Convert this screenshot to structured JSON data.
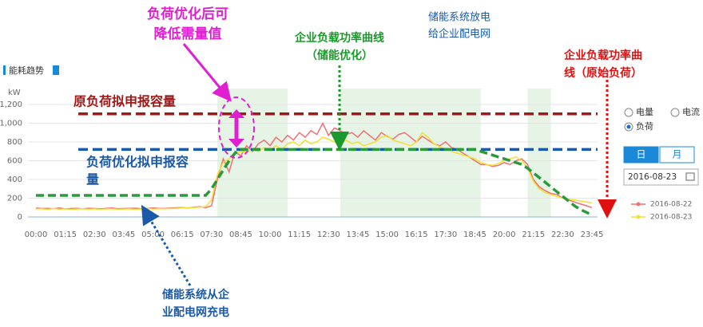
{
  "header": {
    "title": "能耗趋势"
  },
  "chart_data": {
    "type": "line",
    "y_axis_label": "kW",
    "categories": [
      "00:00",
      null,
      null,
      null,
      null,
      "01:15",
      null,
      null,
      null,
      null,
      "02:30",
      null,
      null,
      null,
      null,
      "03:45",
      null,
      null,
      null,
      null,
      "05:00",
      null,
      null,
      null,
      null,
      "06:15",
      null,
      null,
      null,
      null,
      "07:30",
      null,
      null,
      null,
      null,
      "08:45",
      null,
      null,
      null,
      null,
      "10:00",
      null,
      null,
      null,
      null,
      "11:15",
      null,
      null,
      null,
      null,
      "12:30",
      null,
      null,
      null,
      null,
      "13:45",
      null,
      null,
      null,
      null,
      "15:00",
      null,
      null,
      null,
      null,
      "16:15",
      null,
      null,
      null,
      null,
      "17:30",
      null,
      null,
      null,
      null,
      "18:45",
      null,
      null,
      null,
      null,
      "20:00",
      null,
      null,
      null,
      null,
      "21:15",
      null,
      null,
      null,
      null,
      "22:30",
      null,
      null,
      null,
      null,
      "23:45"
    ],
    "series": [
      {
        "name": "2016-08-22",
        "color": "#f07070",
        "values": [
          95,
          90,
          92,
          88,
          95,
          85,
          90,
          92,
          88,
          93,
          90,
          86,
          92,
          95,
          88,
          90,
          92,
          94,
          88,
          90,
          95,
          92,
          90,
          96,
          98,
          100,
          95,
          105,
          110,
          100,
          120,
          400,
          620,
          480,
          700,
          650,
          760,
          700,
          780,
          820,
          760,
          850,
          800,
          870,
          820,
          900,
          850,
          920,
          880,
          1000,
          870,
          950,
          920,
          880,
          900,
          850,
          920,
          870,
          820,
          900,
          860,
          830,
          880,
          900,
          850,
          800,
          860,
          820,
          780,
          760,
          800,
          740,
          720,
          680,
          640,
          600,
          560,
          560,
          540,
          550,
          580,
          560,
          600,
          620,
          560,
          400,
          320,
          280,
          250,
          240,
          200,
          180,
          160,
          140,
          120,
          100
        ]
      },
      {
        "name": "2016-08-23",
        "color": "#f0e030",
        "values": [
          85,
          88,
          80,
          90,
          82,
          86,
          80,
          84,
          88,
          82,
          86,
          80,
          85,
          88,
          82,
          84,
          86,
          80,
          85,
          90,
          84,
          88,
          86,
          90,
          92,
          95,
          98,
          100,
          105,
          110,
          180,
          450,
          580,
          620,
          680,
          700,
          690,
          720,
          700,
          740,
          710,
          760,
          720,
          780,
          800,
          760,
          820,
          780,
          800,
          850,
          830,
          800,
          780,
          820,
          780,
          800,
          760,
          780,
          800,
          850,
          870,
          820,
          800,
          780,
          760,
          800,
          900,
          850,
          780,
          750,
          720,
          700,
          680,
          660,
          640,
          620,
          580,
          560,
          550,
          570,
          600,
          620,
          640,
          600,
          520,
          380,
          300,
          260,
          240,
          220,
          200,
          190,
          180,
          170,
          160,
          150
        ]
      }
    ],
    "optimized_curve": {
      "color": "#2a9a3a",
      "values": [
        230,
        230,
        230,
        230,
        230,
        230,
        230,
        230,
        230,
        230,
        230,
        230,
        230,
        230,
        230,
        230,
        230,
        230,
        230,
        230,
        230,
        230,
        230,
        230,
        230,
        230,
        230,
        230,
        230,
        230,
        300,
        400,
        500,
        600,
        680,
        720,
        720,
        720,
        720,
        720,
        720,
        720,
        720,
        720,
        720,
        720,
        720,
        720,
        720,
        720,
        720,
        720,
        720,
        720,
        720,
        720,
        720,
        720,
        720,
        720,
        720,
        720,
        720,
        720,
        720,
        720,
        720,
        720,
        720,
        720,
        720,
        720,
        720,
        720,
        720,
        720,
        700,
        680,
        660,
        640,
        620,
        600,
        580,
        560,
        520,
        470,
        420,
        370,
        320,
        270,
        220,
        170,
        120,
        80,
        50,
        20
      ]
    },
    "reference_lines": [
      {
        "lines": [
          "原负荷拟申报容量"
        ],
        "value": 1100,
        "color": "#a01818"
      },
      {
        "lines": [
          "负荷优化拟申报容",
          "量"
        ],
        "value": 720,
        "color": "#1a5aa8"
      }
    ],
    "ylim": [
      0,
      1200
    ],
    "yticks": [
      0,
      200,
      400,
      600,
      800,
      {
        "value": 1000,
        "label": "1,000"
      },
      {
        "value": 1200,
        "label": "1,200"
      }
    ],
    "grid": true,
    "annotations": [
      {
        "lines": [
          "负荷优化后可",
          "降低需量值"
        ],
        "color": "#e020d0"
      },
      {
        "lines": [
          "企业负载功率曲线",
          "（储能优化）"
        ],
        "color": "#1a9a2a"
      },
      {
        "lines": [
          "储能系统放电",
          "给企业配电网"
        ],
        "color": "#1a5aa8"
      },
      {
        "lines": [
          "企业负载功率曲",
          "线（原始负荷）"
        ],
        "color": "#e01010"
      },
      {
        "lines": [
          "储能系统从企",
          "业配电网充电"
        ],
        "color": "#1a5aa8"
      }
    ]
  },
  "controls": {
    "radios": [
      "电量",
      "电流",
      "负荷"
    ],
    "selected": "负荷",
    "buttons": [
      "日",
      "月"
    ],
    "date": "2016-08-23"
  }
}
